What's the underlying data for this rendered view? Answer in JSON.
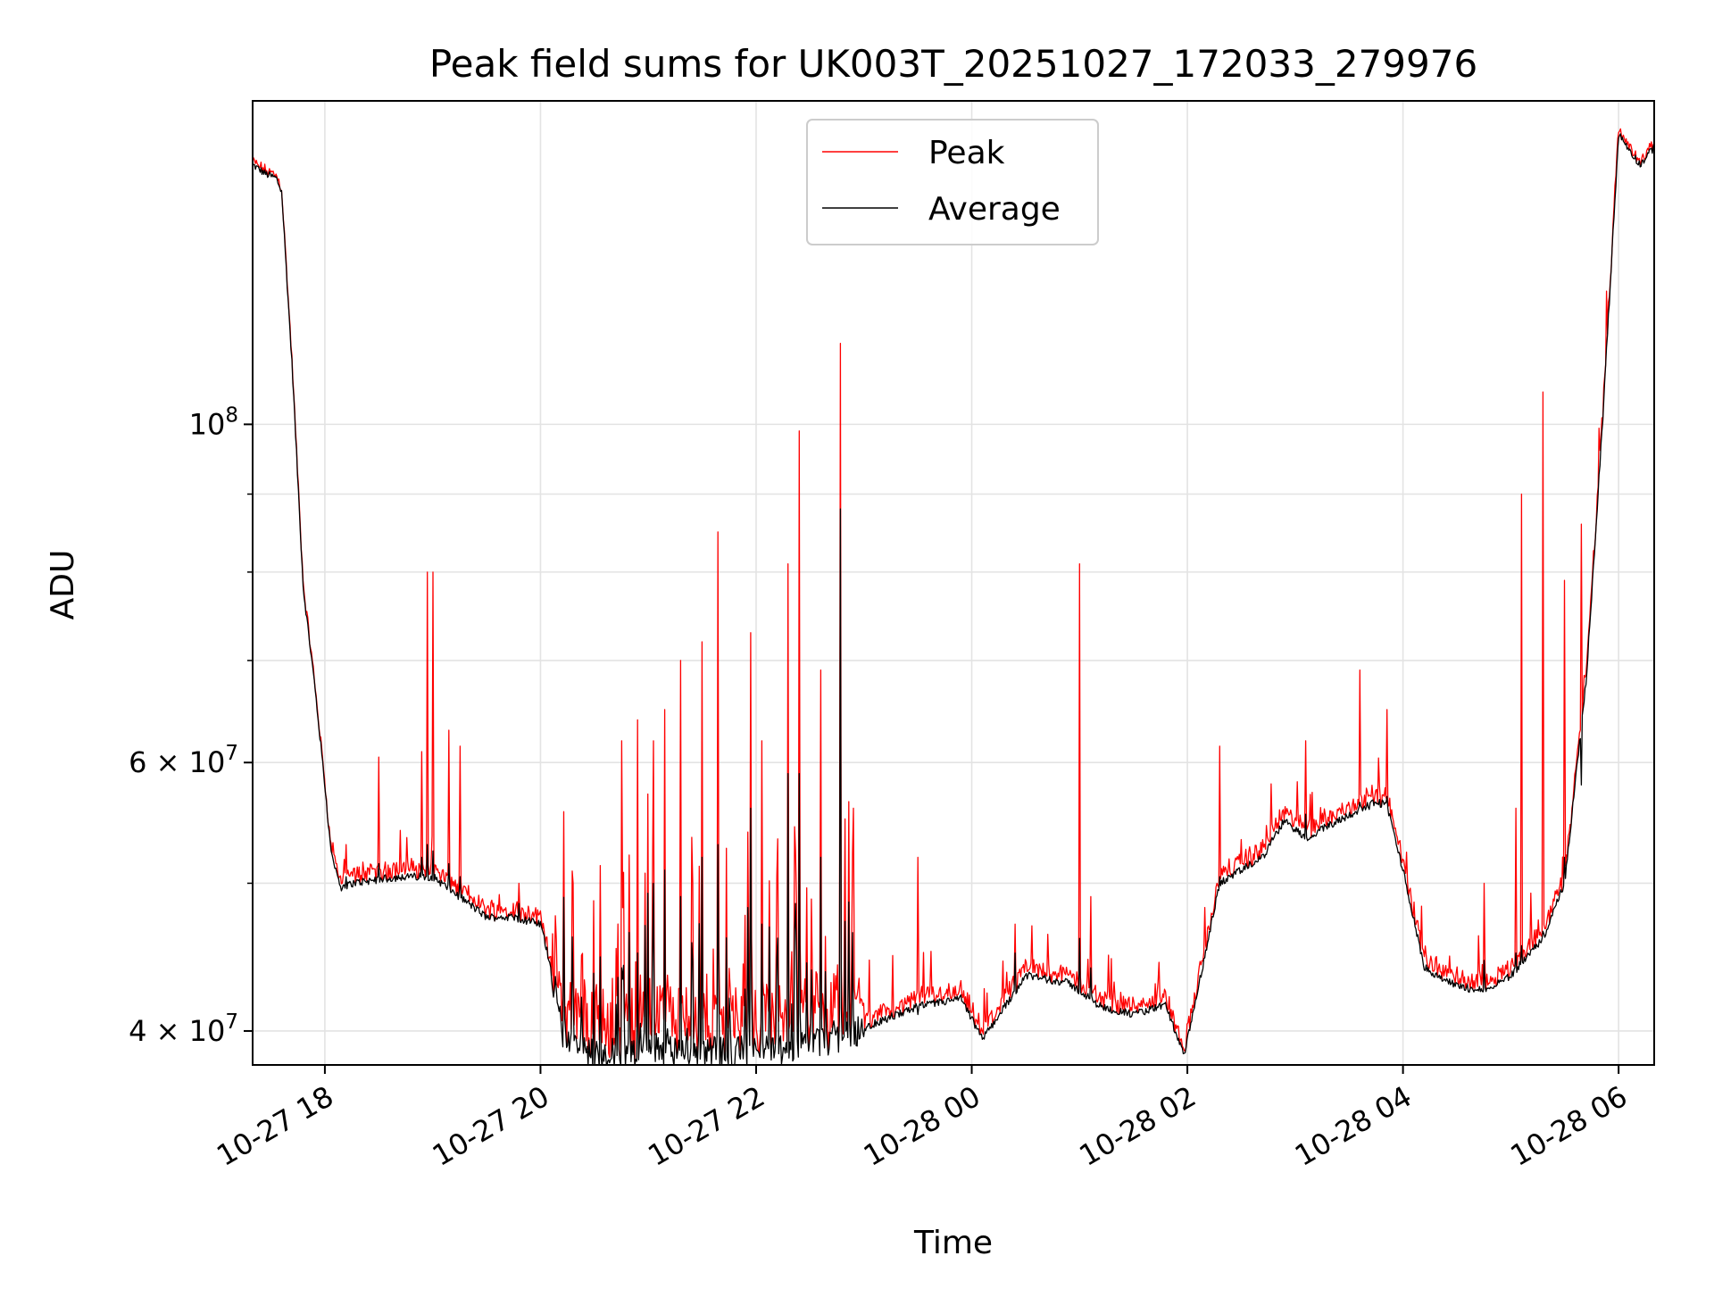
{
  "chart_data": {
    "type": "line",
    "title": "Peak field sums for UK003T_20251027_172033_279976",
    "xlabel": "Time",
    "ylabel": "ADU",
    "yscale": "log",
    "ylim": [
      38000000,
      163000000
    ],
    "xlim_hours": [
      17.33,
      30.33
    ],
    "grid": true,
    "legend_position": "upper-center",
    "x_ticks": [
      {
        "label": "10-27 18",
        "hour": 18
      },
      {
        "label": "10-27 20",
        "hour": 20
      },
      {
        "label": "10-27 22",
        "hour": 22
      },
      {
        "label": "10-28 00",
        "hour": 24
      },
      {
        "label": "10-28 02",
        "hour": 26
      },
      {
        "label": "10-28 04",
        "hour": 28
      },
      {
        "label": "10-28 06",
        "hour": 30
      }
    ],
    "y_major_ticks": [
      {
        "value": 40000000,
        "base": "4 × 10",
        "exp": "7"
      },
      {
        "value": 60000000,
        "base": "6 × 10",
        "exp": "7"
      },
      {
        "value": 100000000,
        "base": "10",
        "exp": "8"
      }
    ],
    "y_minor_ticks": [
      50000000,
      70000000,
      80000000,
      90000000
    ],
    "series": [
      {
        "name": "Peak",
        "color": "#ff0000"
      },
      {
        "name": "Average",
        "color": "#000000"
      }
    ],
    "baseline": {
      "hours": [
        17.33,
        17.45,
        17.55,
        17.6,
        17.7,
        17.8,
        17.9,
        18.0,
        18.05,
        18.1,
        18.15,
        18.25,
        18.5,
        18.75,
        19.0,
        19.25,
        19.5,
        19.75,
        20.0,
        20.1,
        20.2,
        20.5,
        21.0,
        21.5,
        22.0,
        22.5,
        23.0,
        23.5,
        23.9,
        24.1,
        24.5,
        24.9,
        25.2,
        25.5,
        25.8,
        25.97,
        26.05,
        26.3,
        26.7,
        26.9,
        27.1,
        27.4,
        27.75,
        27.85,
        28.0,
        28.2,
        28.5,
        28.75,
        29.0,
        29.3,
        29.5,
        29.7,
        29.85,
        30.0,
        30.2,
        30.33
      ],
      "values": [
        148000000,
        146000000,
        145000000,
        142000000,
        108000000,
        78000000,
        68000000,
        58000000,
        53000000,
        51000000,
        49500000,
        50000000,
        50300000,
        50500000,
        50500000,
        49000000,
        47500000,
        47500000,
        47000000,
        44000000,
        40000000,
        38500000,
        39000000,
        38700000,
        38800000,
        39200000,
        40200000,
        41500000,
        42000000,
        39500000,
        43500000,
        43000000,
        41500000,
        41000000,
        41600000,
        38500000,
        41000000,
        50000000,
        52000000,
        55000000,
        53500000,
        55000000,
        56500000,
        56300000,
        51000000,
        44000000,
        42800000,
        42500000,
        43500000,
        46000000,
        50000000,
        68000000,
        100000000,
        155000000,
        148000000,
        152000000
      ]
    },
    "spike_window_hours": [
      18.05,
      30.0
    ],
    "spikes": [
      {
        "hour": 18.2,
        "peak": 53000000,
        "avg": 50500000
      },
      {
        "hour": 18.5,
        "peak": 60500000,
        "avg": 51500000
      },
      {
        "hour": 18.9,
        "peak": 61000000,
        "avg": 52000000
      },
      {
        "hour": 18.95,
        "peak": 80000000,
        "avg": 53000000
      },
      {
        "hour": 19.0,
        "peak": 80000000,
        "avg": 52500000
      },
      {
        "hour": 19.15,
        "peak": 63000000,
        "avg": 51500000
      },
      {
        "hour": 19.25,
        "peak": 61500000,
        "avg": 50500000
      },
      {
        "hour": 19.8,
        "peak": 50000000,
        "avg": 48500000
      },
      {
        "hour": 20.3,
        "peak": 50000000,
        "avg": 42500000
      },
      {
        "hour": 20.75,
        "peak": 62000000,
        "avg": 44000000
      },
      {
        "hour": 20.9,
        "peak": 64000000,
        "avg": 45000000
      },
      {
        "hour": 21.05,
        "peak": 62000000,
        "avg": 50000000
      },
      {
        "hour": 21.15,
        "peak": 65000000,
        "avg": 51000000
      },
      {
        "hour": 21.3,
        "peak": 70000000,
        "avg": 49000000
      },
      {
        "hour": 21.5,
        "peak": 72000000,
        "avg": 52000000
      },
      {
        "hour": 21.65,
        "peak": 85000000,
        "avg": 53000000
      },
      {
        "hour": 21.95,
        "peak": 73000000,
        "avg": 56000000
      },
      {
        "hour": 22.05,
        "peak": 62000000,
        "avg": 47000000
      },
      {
        "hour": 22.3,
        "peak": 81000000,
        "avg": 59000000
      },
      {
        "hour": 22.4,
        "peak": 99000000,
        "avg": 59000000
      },
      {
        "hour": 22.6,
        "peak": 69000000,
        "avg": 52000000
      },
      {
        "hour": 22.78,
        "peak": 113000000,
        "avg": 88000000
      },
      {
        "hour": 22.9,
        "peak": 56000000,
        "avg": 41000000
      },
      {
        "hour": 23.5,
        "peak": 52000000,
        "avg": 41000000
      },
      {
        "hour": 24.4,
        "peak": 47000000,
        "avg": 45000000
      },
      {
        "hour": 25.0,
        "peak": 81000000,
        "avg": 46000000
      },
      {
        "hour": 25.1,
        "peak": 49000000,
        "avg": 44000000
      },
      {
        "hour": 26.3,
        "peak": 61500000,
        "avg": 50500000
      },
      {
        "hour": 27.1,
        "peak": 62000000,
        "avg": 55500000
      },
      {
        "hour": 27.6,
        "peak": 69000000,
        "avg": 56500000
      },
      {
        "hour": 27.85,
        "peak": 65000000,
        "avg": 57000000
      },
      {
        "hour": 28.75,
        "peak": 50000000,
        "avg": 44500000
      },
      {
        "hour": 29.05,
        "peak": 56000000,
        "avg": 45000000
      },
      {
        "hour": 29.1,
        "peak": 90000000,
        "avg": 45500000
      },
      {
        "hour": 29.3,
        "peak": 105000000,
        "avg": 46500000
      },
      {
        "hour": 29.5,
        "peak": 79000000,
        "avg": 52000000
      },
      {
        "hour": 29.65,
        "peak": 86000000,
        "avg": 58000000
      }
    ]
  }
}
